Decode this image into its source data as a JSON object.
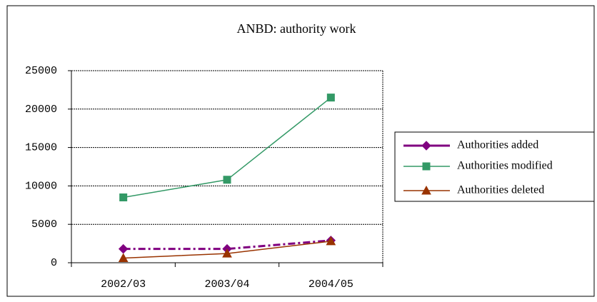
{
  "chart_data": {
    "type": "line",
    "title": "ANBD: authority work",
    "categories": [
      "2002/03",
      "2003/04",
      "2004/05"
    ],
    "series": [
      {
        "name": "Authorities added",
        "color": "#800080",
        "marker": "diamond",
        "dash": "10 4 3 4",
        "values": [
          1800,
          1800,
          2900
        ]
      },
      {
        "name": "Authorities modified",
        "color": "#339966",
        "marker": "square",
        "dash": "none",
        "values": [
          8500,
          10800,
          21500
        ]
      },
      {
        "name": "Authorities deleted",
        "color": "#993300",
        "marker": "triangle",
        "dash": "none",
        "values": [
          600,
          1200,
          2800
        ]
      }
    ],
    "ylim": [
      0,
      25000
    ],
    "yticks": [
      0,
      5000,
      10000,
      15000,
      20000,
      25000
    ],
    "grid": true,
    "legend": "right"
  }
}
